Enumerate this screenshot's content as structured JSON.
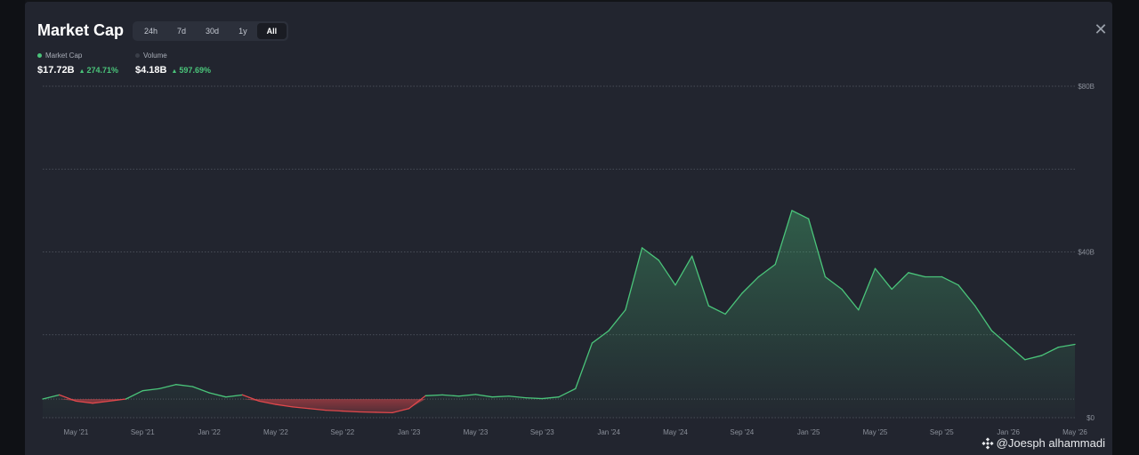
{
  "modal": {
    "title": "Market Cap",
    "tabs": [
      "24h",
      "7d",
      "30d",
      "1y",
      "All"
    ],
    "active_tab": "All",
    "close_icon": "close-icon"
  },
  "legend": {
    "market_cap": {
      "label": "Market Cap",
      "value": "$17.72B",
      "change": "274.71%",
      "color": "#4ac47a"
    },
    "volume": {
      "label": "Volume",
      "value": "$4.18B",
      "change": "597.69%",
      "color": "#3a3e48"
    }
  },
  "watermark": {
    "text": "@Joesph alhammadi",
    "icon": "binance-logo-icon"
  },
  "colors": {
    "up": "#4ac47a",
    "down": "#e0484c",
    "grid": "#565b66",
    "axis_text": "#8a8f99"
  },
  "chart_data": {
    "type": "area",
    "title": "Market Cap",
    "y_ticks": [
      "$80B",
      "$40B",
      "$0"
    ],
    "ylim": [
      0,
      80
    ],
    "y_unit": "B USD",
    "x_ticks": [
      "May '21",
      "Sep '21",
      "Jan '22",
      "May '22",
      "Sep '22",
      "Jan '23",
      "May '23",
      "Sep '23",
      "Jan '24",
      "May '24",
      "Sep '24",
      "Jan '25",
      "May '25",
      "Sep '25",
      "Jan '26",
      "May '26"
    ],
    "x_tick_dates": [
      "2021-05",
      "2021-09",
      "2022-01",
      "2022-05",
      "2022-09",
      "2023-01",
      "2023-05",
      "2023-09",
      "2024-01",
      "2024-05",
      "2024-09",
      "2025-01",
      "2025-05",
      "2025-09",
      "2026-01",
      "2026-05"
    ],
    "baseline": 4.5,
    "grid": true,
    "series": [
      {
        "name": "Market Cap",
        "x": [
          "2021-03",
          "2021-04",
          "2021-05",
          "2021-06",
          "2021-07",
          "2021-08",
          "2021-09",
          "2021-10",
          "2021-11",
          "2021-12",
          "2022-01",
          "2022-02",
          "2022-03",
          "2022-04",
          "2022-05",
          "2022-06",
          "2022-07",
          "2022-08",
          "2022-09",
          "2022-10",
          "2022-11",
          "2022-12",
          "2023-01",
          "2023-02",
          "2023-03",
          "2023-04",
          "2023-05",
          "2023-06",
          "2023-07",
          "2023-08",
          "2023-09",
          "2023-10",
          "2023-11",
          "2023-12",
          "2024-01",
          "2024-02",
          "2024-03",
          "2024-04",
          "2024-05",
          "2024-06",
          "2024-07",
          "2024-08",
          "2024-09",
          "2024-10",
          "2024-11",
          "2024-12",
          "2025-01",
          "2025-02",
          "2025-03",
          "2025-04",
          "2025-05",
          "2025-06",
          "2025-07",
          "2025-08",
          "2025-09",
          "2025-10",
          "2025-11",
          "2025-12",
          "2026-01",
          "2026-02",
          "2026-03",
          "2026-04",
          "2026-05"
        ],
        "values": [
          4.5,
          5.5,
          4.0,
          3.5,
          4.0,
          4.5,
          6.5,
          7.0,
          8.0,
          7.5,
          6.0,
          5.0,
          5.5,
          4.0,
          3.2,
          2.6,
          2.2,
          1.8,
          1.6,
          1.4,
          1.3,
          1.2,
          2.2,
          5.3,
          5.5,
          5.2,
          5.6,
          5.0,
          5.2,
          4.8,
          4.6,
          5.0,
          7.0,
          18.0,
          21.0,
          26.0,
          41.0,
          38.0,
          32.0,
          39.0,
          27.0,
          25.0,
          30.0,
          34.0,
          37.0,
          50.0,
          48.0,
          34.0,
          31.0,
          26.0,
          36.0,
          31.0,
          35.0,
          34.0,
          34.0,
          32.0,
          27.0,
          21.0,
          17.5,
          14.0,
          15.0,
          17.0,
          17.7
        ]
      }
    ]
  }
}
